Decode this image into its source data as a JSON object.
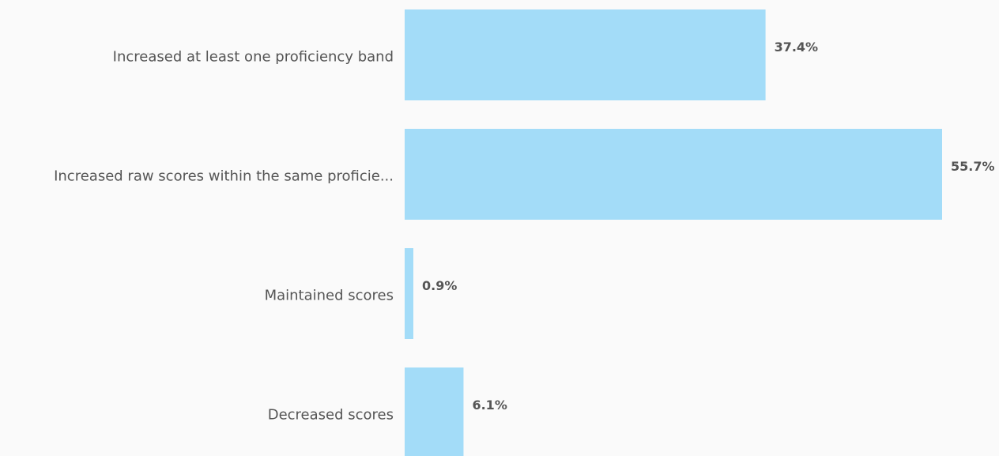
{
  "chart_data": {
    "type": "bar",
    "orientation": "horizontal",
    "categories": [
      "Increased at least one proficiency band",
      "Increased raw scores within the same proficie...",
      "Maintained scores",
      "Decreased scores"
    ],
    "values": [
      37.4,
      55.7,
      0.9,
      6.1
    ],
    "value_labels": [
      "37.4%",
      "55.7%",
      "0.9%",
      "6.1%"
    ],
    "color": "#a3dcf8"
  }
}
